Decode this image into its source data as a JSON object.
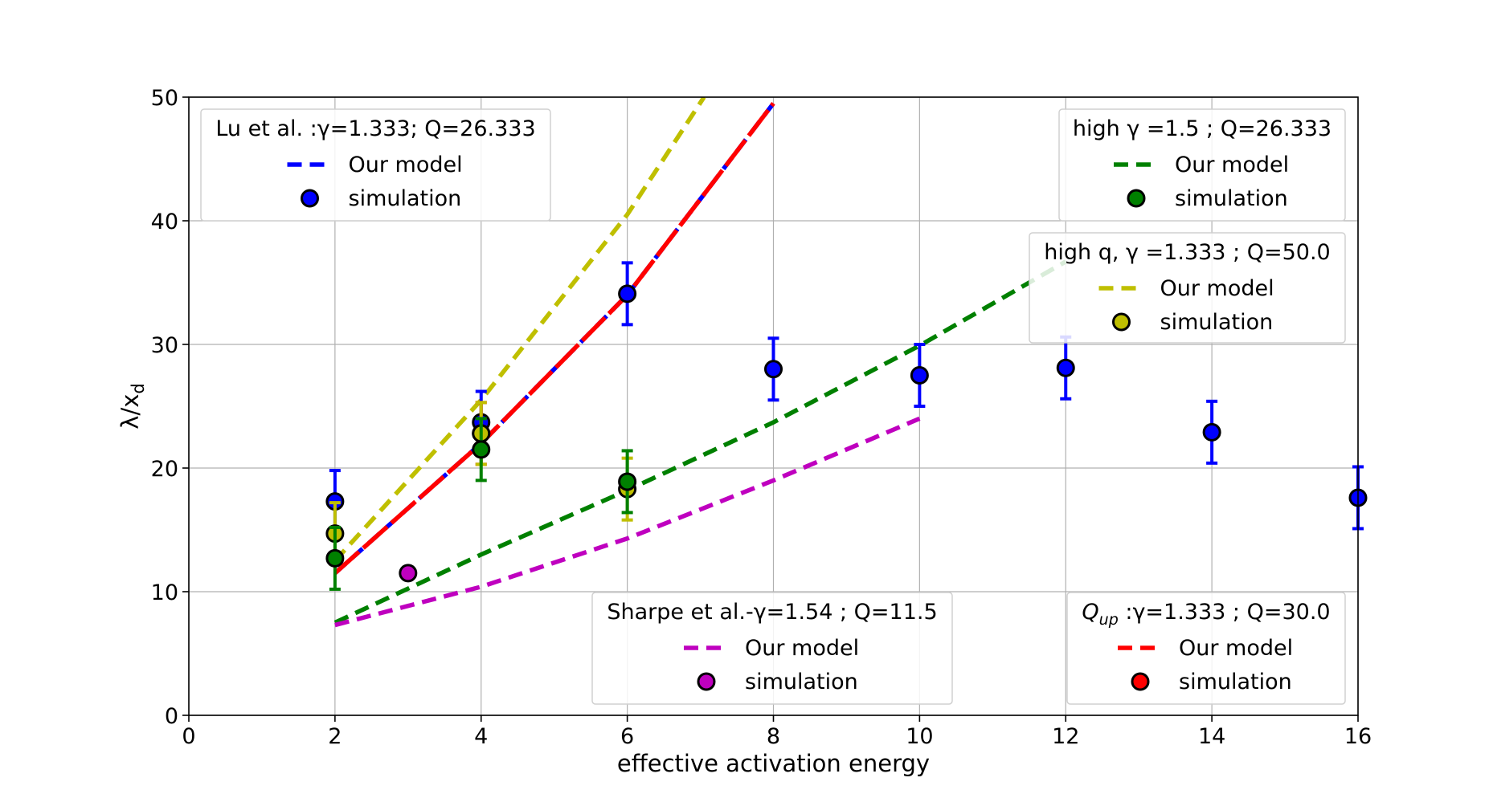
{
  "chart_data": {
    "type": "scatter",
    "xlabel": "effective activation energy",
    "ylabel": "λ/x_d",
    "xlim": [
      0,
      16
    ],
    "ylim": [
      0,
      50
    ],
    "xticks": [
      "0",
      "2",
      "4",
      "6",
      "8",
      "10",
      "12",
      "14",
      "16"
    ],
    "yticks": [
      "0",
      "10",
      "20",
      "30",
      "40",
      "50"
    ],
    "grid": true,
    "model_curves": [
      {
        "group": "Lu et al. :γ=1.333; Q=26.333",
        "color": "#0000ff",
        "x": [
          2,
          4,
          6,
          8
        ],
        "y": [
          11.5,
          22,
          34,
          49.5
        ]
      },
      {
        "group": "Qup :γ=1.333 ; Q=30.0",
        "color": "#ff0000",
        "x": [
          2,
          4,
          6,
          8
        ],
        "y": [
          11.5,
          22,
          34,
          49.5
        ]
      },
      {
        "group": "high γ =1.5 ; Q=26.333",
        "color": "#008000",
        "x": [
          2,
          4,
          6,
          8,
          10,
          12
        ],
        "y": [
          7.5,
          13,
          18.2,
          23.7,
          29.9,
          36.7
        ]
      },
      {
        "group": "high q, γ =1.333 ; Q=50.0",
        "color": "#bfbf00",
        "x": [
          2,
          4,
          6,
          7.05
        ],
        "y": [
          12.5,
          25.5,
          40.5,
          50
        ]
      },
      {
        "group": "Sharpe et al.-γ=1.54 ; Q=11.5",
        "color": "#bf00bf",
        "x": [
          2,
          4,
          6,
          8,
          10
        ],
        "y": [
          7.3,
          10.4,
          14.3,
          19.0,
          24.0
        ]
      }
    ],
    "simulation_points": [
      {
        "group": "Lu et al. :γ=1.333; Q=26.333",
        "color": "#0000ff",
        "points": [
          {
            "x": 2,
            "y": 17.3,
            "err": 2.5
          },
          {
            "x": 4,
            "y": 23.7,
            "err": 2.5
          },
          {
            "x": 6,
            "y": 34.1,
            "err": 2.5
          },
          {
            "x": 8,
            "y": 28.0,
            "err": 2.5
          },
          {
            "x": 10,
            "y": 27.5,
            "err": 2.5
          },
          {
            "x": 12,
            "y": 28.1,
            "err": 2.5
          },
          {
            "x": 14,
            "y": 22.9,
            "err": 2.5
          },
          {
            "x": 16,
            "y": 17.6,
            "err": 2.5
          }
        ]
      },
      {
        "group": "Qup :γ=1.333 ; Q=30.0",
        "color": "#ff0000",
        "points": [
          {
            "x": 4,
            "y": 22.8,
            "err": 2.5
          }
        ]
      },
      {
        "group": "high q, γ =1.333 ; Q=50.0",
        "color": "#bfbf00",
        "points": [
          {
            "x": 2,
            "y": 14.7,
            "err": 2.5
          },
          {
            "x": 4,
            "y": 22.8,
            "err": 2.5
          },
          {
            "x": 6,
            "y": 18.3,
            "err": 2.5
          }
        ]
      },
      {
        "group": "high γ =1.5 ; Q=26.333",
        "color": "#008000",
        "points": [
          {
            "x": 2,
            "y": 12.7,
            "err": 2.5
          },
          {
            "x": 4,
            "y": 21.5,
            "err": 2.5
          },
          {
            "x": 6,
            "y": 18.9,
            "err": 2.5
          }
        ]
      },
      {
        "group": "Sharpe et al.-γ=1.54 ; Q=11.5",
        "color": "#bf00bf",
        "points": [
          {
            "x": 3,
            "y": 11.5,
            "err": 0
          }
        ]
      }
    ],
    "legends": [
      {
        "title": "Lu et al. :γ=1.333; Q=26.333",
        "color": "#0000ff",
        "line_label": "Our model",
        "marker_label": "simulation",
        "position": "top-left"
      },
      {
        "title": "high γ =1.5 ; Q=26.333",
        "color": "#008000",
        "line_label": "Our model",
        "marker_label": "simulation",
        "position": "top-right"
      },
      {
        "title": "high q, γ =1.333 ; Q=50.0",
        "color": "#bfbf00",
        "line_label": "Our model",
        "marker_label": "simulation",
        "position": "right"
      },
      {
        "title": "Sharpe et al.-γ=1.54 ; Q=11.5",
        "color": "#bf00bf",
        "line_label": "Our model",
        "marker_label": "simulation",
        "position": "lower-center"
      },
      {
        "title": "Qup :γ=1.333 ; Q=30.0",
        "color": "#ff0000",
        "line_label": "Our model",
        "marker_label": "simulation",
        "position": "lower-right"
      }
    ]
  }
}
